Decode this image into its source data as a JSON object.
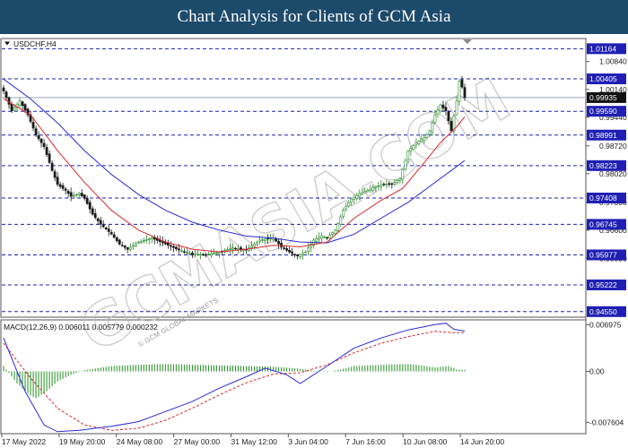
{
  "title": "Chart Analysis for Clients of GCM Asia",
  "watermark": "GCMASIA.COM",
  "watermark_small": "© GCM GLOBAL MARKETS",
  "colors": {
    "title_bar": "#1c4a6b",
    "level_line": "#1f1fb4",
    "bull": "#2e8b2e",
    "bear": "#1a1a1a",
    "ma_fast": "#d62a2a",
    "ma_slow": "#2a2ad6",
    "macd_hist": "#1f8f1f",
    "macd_signal": "#d62a2a",
    "macd_line": "#2a2ad6"
  },
  "chart_data": [
    {
      "type": "candlestick",
      "symbol_label": "USDCHF,H4",
      "ylim": [
        0.9441,
        1.0142
      ],
      "y_ticks": [
        "1.00840",
        "1.00140",
        "0.99440",
        "0.98720",
        "0.98020",
        "0.97300",
        "0.96600",
        "0.95890"
      ],
      "levels": [
        {
          "label": "1.01164",
          "value": 1.01164
        },
        {
          "label": "1.00405",
          "value": 1.00405
        },
        {
          "label": "0.99590",
          "value": 0.9959
        },
        {
          "label": "0.98991",
          "value": 0.98991
        },
        {
          "label": "0.98223",
          "value": 0.98223
        },
        {
          "label": "0.97408",
          "value": 0.97408
        },
        {
          "label": "0.96745",
          "value": 0.96745
        },
        {
          "label": "0.95977",
          "value": 0.95977
        },
        {
          "label": "0.95222",
          "value": 0.95222
        },
        {
          "label": "0.94550",
          "value": 0.9455
        }
      ],
      "current_price": {
        "label": "0.99935",
        "value": 0.99935
      },
      "x_ticks": [
        "17 May 2022",
        "19 May 20:00",
        "24 May 08:00",
        "27 May 00:00",
        "31 May 12:00",
        "3 Jun 04:00",
        "7 Jun 16:00",
        "10 Jun 08:00",
        "14 Jun 20:00"
      ],
      "close_path": [
        [
          0,
          1.001
        ],
        [
          3,
          0.996
        ],
        [
          6,
          0.9985
        ],
        [
          9,
          0.995
        ],
        [
          12,
          0.99
        ],
        [
          15,
          0.987
        ],
        [
          18,
          0.981
        ],
        [
          20,
          0.9775
        ],
        [
          23,
          0.976
        ],
        [
          25,
          0.9745
        ],
        [
          28,
          0.9752
        ],
        [
          30,
          0.974
        ],
        [
          33,
          0.97
        ],
        [
          36,
          0.9675
        ],
        [
          40,
          0.965
        ],
        [
          43,
          0.9625
        ],
        [
          46,
          0.9612
        ],
        [
          50,
          0.963
        ],
        [
          55,
          0.964
        ],
        [
          60,
          0.9625
        ],
        [
          65,
          0.961
        ],
        [
          70,
          0.96
        ],
        [
          75,
          0.9598
        ],
        [
          80,
          0.9605
        ],
        [
          85,
          0.9615
        ],
        [
          90,
          0.961
        ],
        [
          95,
          0.9635
        ],
        [
          100,
          0.964
        ],
        [
          103,
          0.9618
        ],
        [
          106,
          0.9605
        ],
        [
          109,
          0.9595
        ],
        [
          112,
          0.9605
        ],
        [
          115,
          0.9635
        ],
        [
          118,
          0.9645
        ],
        [
          120,
          0.964
        ],
        [
          123,
          0.966
        ],
        [
          126,
          0.971
        ],
        [
          129,
          0.9738
        ],
        [
          132,
          0.9752
        ],
        [
          135,
          0.976
        ],
        [
          138,
          0.977
        ],
        [
          141,
          0.9775
        ],
        [
          144,
          0.9775
        ],
        [
          147,
          0.979
        ],
        [
          150,
          0.9858
        ],
        [
          153,
          0.988
        ],
        [
          156,
          0.9892
        ],
        [
          158,
          0.991
        ],
        [
          160,
          0.995
        ],
        [
          162,
          0.9975
        ],
        [
          164,
          0.996
        ],
        [
          166,
          0.991
        ],
        [
          168,
          0.9985
        ],
        [
          169,
          1.0035
        ],
        [
          170,
          1.002
        ],
        [
          171,
          0.99935
        ]
      ],
      "ma_fast": [
        [
          0,
          0.999
        ],
        [
          10,
          0.995
        ],
        [
          20,
          0.986
        ],
        [
          30,
          0.978
        ],
        [
          40,
          0.971
        ],
        [
          50,
          0.966
        ],
        [
          60,
          0.963
        ],
        [
          70,
          0.9612
        ],
        [
          80,
          0.9605
        ],
        [
          90,
          0.9612
        ],
        [
          100,
          0.9622
        ],
        [
          110,
          0.9618
        ],
        [
          120,
          0.963
        ],
        [
          130,
          0.969
        ],
        [
          140,
          0.9735
        ],
        [
          148,
          0.9765
        ],
        [
          156,
          0.983
        ],
        [
          162,
          0.988
        ],
        [
          168,
          0.992
        ],
        [
          171,
          0.9945
        ]
      ],
      "ma_slow": [
        [
          0,
          1.004
        ],
        [
          10,
          0.999
        ],
        [
          20,
          0.993
        ],
        [
          30,
          0.986
        ],
        [
          40,
          0.98
        ],
        [
          50,
          0.975
        ],
        [
          60,
          0.971
        ],
        [
          70,
          0.968
        ],
        [
          80,
          0.966
        ],
        [
          90,
          0.9645
        ],
        [
          100,
          0.964
        ],
        [
          110,
          0.963
        ],
        [
          120,
          0.9628
        ],
        [
          130,
          0.965
        ],
        [
          140,
          0.969
        ],
        [
          150,
          0.973
        ],
        [
          160,
          0.978
        ],
        [
          166,
          0.981
        ],
        [
          171,
          0.9835
        ]
      ]
    },
    {
      "type": "bar",
      "header": "MACD(12,26,9) 0.006011 0.005779 0.000232",
      "ylim": [
        -0.0093,
        0.0077
      ],
      "y_ticks": [
        "0.006975",
        "0.00",
        "-0.007604"
      ],
      "hist_path": [
        [
          0,
          0.0008
        ],
        [
          5,
          -0.0018
        ],
        [
          10,
          -0.0036
        ],
        [
          12,
          -0.004
        ],
        [
          15,
          -0.0033
        ],
        [
          20,
          -0.0015
        ],
        [
          25,
          -0.0005
        ],
        [
          30,
          0.0002
        ],
        [
          40,
          0.0008
        ],
        [
          50,
          0.001
        ],
        [
          60,
          0.0011
        ],
        [
          70,
          0.001
        ],
        [
          80,
          0.0009
        ],
        [
          90,
          0.0008
        ],
        [
          100,
          0.0007
        ],
        [
          110,
          0.0004
        ],
        [
          115,
          0.0001
        ],
        [
          120,
          -0.0001
        ],
        [
          125,
          0.0003
        ],
        [
          130,
          0.0008
        ],
        [
          140,
          0.001
        ],
        [
          150,
          0.0011
        ],
        [
          155,
          0.0009
        ],
        [
          160,
          0.0006
        ],
        [
          165,
          0.0008
        ],
        [
          168,
          0.0003
        ],
        [
          171,
          0.000232
        ]
      ],
      "signal": [
        [
          0,
          0.0042
        ],
        [
          10,
          -0.001
        ],
        [
          20,
          -0.0055
        ],
        [
          30,
          -0.008
        ],
        [
          40,
          -0.0088
        ],
        [
          50,
          -0.0085
        ],
        [
          60,
          -0.0073
        ],
        [
          70,
          -0.0055
        ],
        [
          80,
          -0.0035
        ],
        [
          90,
          -0.0017
        ],
        [
          100,
          -0.0004
        ],
        [
          110,
          -0.0002
        ],
        [
          120,
          0.001
        ],
        [
          130,
          0.0028
        ],
        [
          140,
          0.0042
        ],
        [
          150,
          0.0052
        ],
        [
          160,
          0.006
        ],
        [
          166,
          0.0058
        ],
        [
          171,
          0.005779
        ]
      ],
      "macd": [
        [
          0,
          0.005
        ],
        [
          8,
          -0.003
        ],
        [
          15,
          -0.008
        ],
        [
          20,
          -0.009
        ],
        [
          28,
          -0.0088
        ],
        [
          40,
          -0.0082
        ],
        [
          50,
          -0.0075
        ],
        [
          60,
          -0.006
        ],
        [
          70,
          -0.0045
        ],
        [
          80,
          -0.0025
        ],
        [
          90,
          -0.0008
        ],
        [
          97,
          0.0005
        ],
        [
          105,
          -0.0005
        ],
        [
          110,
          -0.0018
        ],
        [
          120,
          0.0008
        ],
        [
          130,
          0.0035
        ],
        [
          140,
          0.005
        ],
        [
          150,
          0.0062
        ],
        [
          160,
          0.007
        ],
        [
          164,
          0.0072
        ],
        [
          167,
          0.0063
        ],
        [
          171,
          0.006011
        ]
      ]
    }
  ]
}
